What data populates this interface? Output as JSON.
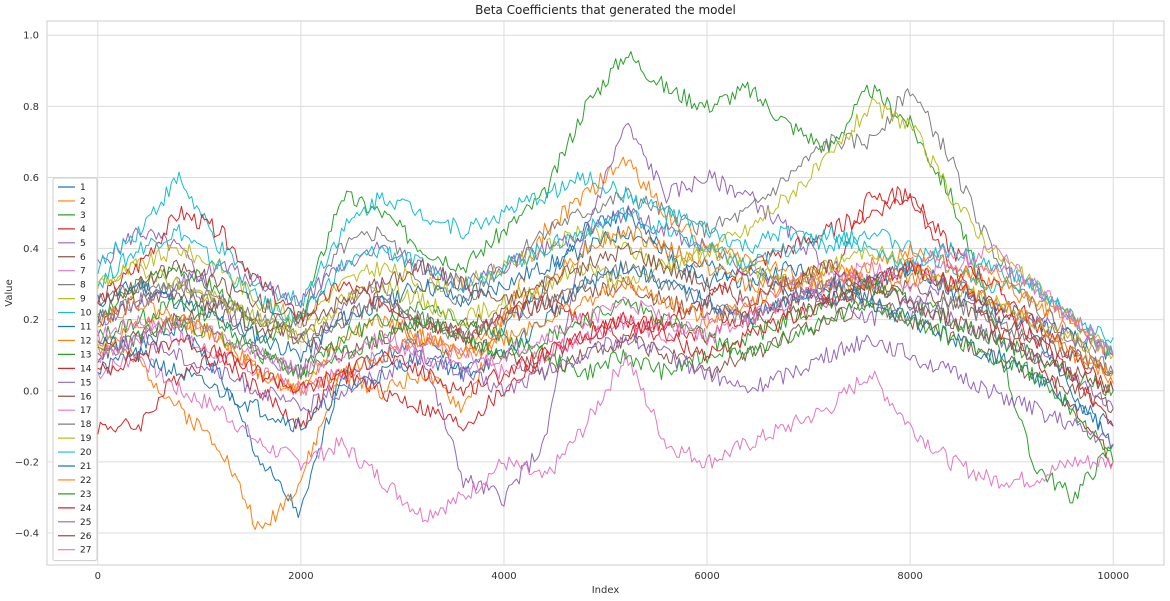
{
  "chart_data": {
    "type": "line",
    "title": "Beta Coefficients that generated the model",
    "xlabel": "Index",
    "ylabel": "Value",
    "xlim": [
      -500,
      10500
    ],
    "ylim": [
      -0.49,
      1.04
    ],
    "x_ticks": [
      0,
      2000,
      4000,
      6000,
      8000,
      10000
    ],
    "x_tick_labels": [
      "0",
      "2000",
      "4000",
      "6000",
      "8000",
      "10000"
    ],
    "y_ticks": [
      -0.4,
      -0.2,
      0.0,
      0.2,
      0.4,
      0.6,
      0.8,
      1.0
    ],
    "y_tick_labels": [
      "−0.4",
      "−0.2",
      "0.0",
      "0.2",
      "0.4",
      "0.6",
      "0.8",
      "1.0"
    ],
    "grid": true,
    "legend_position": "left",
    "x": [
      0,
      400,
      800,
      1200,
      1600,
      2000,
      2400,
      2800,
      3200,
      3600,
      4000,
      4400,
      4800,
      5200,
      5600,
      6000,
      6400,
      6800,
      7200,
      7600,
      8000,
      8400,
      8800,
      9200,
      9600,
      10000
    ],
    "series": [
      {
        "name": "1",
        "color": "#1f77b4",
        "values": [
          0.05,
          0.12,
          0.18,
          0.05,
          -0.2,
          -0.35,
          0.05,
          0.1,
          0.15,
          0.05,
          0.18,
          0.3,
          0.45,
          0.5,
          0.38,
          0.3,
          0.35,
          0.28,
          0.25,
          0.3,
          0.35,
          0.28,
          0.22,
          0.18,
          0.0,
          -0.15
        ]
      },
      {
        "name": "2",
        "color": "#ff7f0e",
        "values": [
          0.15,
          0.08,
          -0.05,
          -0.15,
          -0.4,
          -0.25,
          0.05,
          0.0,
          0.05,
          -0.05,
          0.2,
          0.45,
          0.55,
          0.65,
          0.5,
          0.4,
          0.38,
          0.33,
          0.3,
          0.28,
          0.32,
          0.3,
          0.35,
          0.25,
          0.15,
          0.02
        ]
      },
      {
        "name": "3",
        "color": "#2ca02c",
        "values": [
          0.2,
          0.3,
          0.35,
          0.28,
          0.15,
          0.2,
          0.55,
          0.5,
          0.4,
          0.35,
          0.45,
          0.55,
          0.8,
          0.95,
          0.85,
          0.8,
          0.85,
          0.75,
          0.68,
          0.85,
          0.75,
          0.55,
          0.2,
          -0.2,
          -0.3,
          -0.15
        ]
      },
      {
        "name": "4",
        "color": "#d62728",
        "values": [
          -0.1,
          -0.1,
          0.05,
          0.1,
          0.0,
          -0.1,
          0.05,
          0.0,
          -0.05,
          -0.1,
          0.0,
          0.1,
          0.15,
          0.2,
          0.18,
          0.15,
          0.22,
          0.25,
          0.28,
          0.55,
          0.55,
          0.35,
          0.18,
          0.1,
          -0.05,
          -0.2
        ]
      },
      {
        "name": "5",
        "color": "#9467bd",
        "values": [
          0.35,
          0.45,
          0.4,
          0.25,
          0.1,
          0.05,
          0.25,
          0.3,
          0.1,
          -0.25,
          -0.3,
          -0.15,
          0.45,
          0.75,
          0.55,
          0.6,
          0.55,
          0.45,
          0.35,
          0.3,
          0.25,
          0.2,
          0.15,
          0.1,
          0.05,
          -0.05
        ]
      },
      {
        "name": "6",
        "color": "#8c564b",
        "values": [
          0.2,
          0.25,
          0.28,
          0.22,
          0.18,
          0.15,
          0.2,
          0.25,
          0.2,
          0.18,
          0.22,
          0.25,
          0.28,
          0.3,
          0.25,
          0.22,
          0.2,
          0.22,
          0.25,
          0.28,
          0.3,
          0.25,
          0.2,
          0.15,
          0.1,
          0.05
        ]
      },
      {
        "name": "7",
        "color": "#e377c2",
        "values": [
          0.05,
          0.1,
          0.0,
          -0.05,
          -0.15,
          -0.2,
          -0.15,
          -0.25,
          -0.35,
          -0.3,
          -0.2,
          -0.25,
          -0.1,
          0.1,
          -0.15,
          -0.2,
          -0.15,
          -0.1,
          -0.05,
          0.05,
          -0.1,
          -0.2,
          -0.25,
          -0.25,
          -0.2,
          -0.2
        ]
      },
      {
        "name": "8",
        "color": "#7f7f7f",
        "values": [
          0.25,
          0.3,
          0.28,
          0.25,
          0.2,
          0.2,
          0.4,
          0.45,
          0.3,
          0.25,
          0.35,
          0.45,
          0.5,
          0.55,
          0.5,
          0.45,
          0.5,
          0.6,
          0.7,
          0.7,
          0.85,
          0.65,
          0.4,
          0.25,
          0.15,
          0.05
        ]
      },
      {
        "name": "9",
        "color": "#bcbd22",
        "values": [
          0.3,
          0.35,
          0.4,
          0.35,
          0.25,
          0.2,
          0.3,
          0.35,
          0.3,
          0.3,
          0.35,
          0.4,
          0.45,
          0.4,
          0.35,
          0.4,
          0.45,
          0.55,
          0.65,
          0.8,
          0.75,
          0.55,
          0.4,
          0.3,
          0.2,
          0.1
        ]
      },
      {
        "name": "10",
        "color": "#17becf",
        "values": [
          0.35,
          0.45,
          0.6,
          0.4,
          0.3,
          0.25,
          0.45,
          0.55,
          0.5,
          0.45,
          0.5,
          0.55,
          0.6,
          0.55,
          0.5,
          0.45,
          0.4,
          0.45,
          0.4,
          0.45,
          0.4,
          0.35,
          0.3,
          0.3,
          0.2,
          0.15
        ]
      },
      {
        "name": "11",
        "color": "#1f77b4",
        "values": [
          0.25,
          0.3,
          0.25,
          0.2,
          0.15,
          0.1,
          0.2,
          0.25,
          0.3,
          0.25,
          0.3,
          0.35,
          0.4,
          0.45,
          0.4,
          0.35,
          0.3,
          0.35,
          0.3,
          0.3,
          0.35,
          0.3,
          0.25,
          0.2,
          0.15,
          0.1
        ]
      },
      {
        "name": "12",
        "color": "#ff7f0e",
        "values": [
          0.12,
          0.18,
          0.2,
          0.15,
          0.05,
          0.0,
          0.15,
          0.2,
          0.15,
          0.1,
          0.2,
          0.3,
          0.4,
          0.45,
          0.4,
          0.35,
          0.3,
          0.3,
          0.3,
          0.35,
          0.4,
          0.35,
          0.3,
          0.25,
          0.2,
          0.1
        ]
      },
      {
        "name": "13",
        "color": "#2ca02c",
        "values": [
          0.15,
          0.2,
          0.25,
          0.2,
          0.1,
          0.05,
          0.15,
          0.2,
          0.25,
          0.2,
          0.15,
          0.1,
          0.05,
          0.1,
          0.05,
          0.1,
          0.15,
          0.2,
          0.25,
          0.3,
          0.25,
          0.2,
          0.15,
          0.1,
          0.05,
          0.0
        ]
      },
      {
        "name": "14",
        "color": "#d62728",
        "values": [
          0.25,
          0.35,
          0.5,
          0.45,
          0.3,
          0.2,
          0.3,
          0.25,
          0.2,
          0.15,
          0.2,
          0.25,
          0.2,
          0.15,
          0.2,
          0.25,
          0.35,
          0.4,
          0.45,
          0.5,
          0.55,
          0.4,
          0.3,
          0.2,
          0.1,
          0.0
        ]
      },
      {
        "name": "15",
        "color": "#9467bd",
        "values": [
          0.2,
          0.25,
          0.3,
          0.35,
          0.3,
          0.25,
          0.35,
          0.4,
          0.35,
          0.3,
          0.35,
          0.4,
          0.45,
          0.5,
          0.45,
          0.4,
          0.35,
          0.3,
          0.25,
          0.2,
          0.25,
          0.3,
          0.25,
          0.2,
          0.15,
          0.1
        ]
      },
      {
        "name": "16",
        "color": "#8c564b",
        "values": [
          0.1,
          0.15,
          0.2,
          0.25,
          0.2,
          0.15,
          0.1,
          0.15,
          0.2,
          0.15,
          0.1,
          0.05,
          0.1,
          0.15,
          0.1,
          0.05,
          0.1,
          0.15,
          0.2,
          0.25,
          0.2,
          0.15,
          0.1,
          0.05,
          0.0,
          -0.05
        ]
      },
      {
        "name": "17",
        "color": "#e377c2",
        "values": [
          0.15,
          0.2,
          0.15,
          0.1,
          0.05,
          0.0,
          0.05,
          0.1,
          0.15,
          0.1,
          0.05,
          0.1,
          0.15,
          0.2,
          0.15,
          0.2,
          0.25,
          0.3,
          0.35,
          0.3,
          0.35,
          0.4,
          0.35,
          0.3,
          0.2,
          0.1
        ]
      },
      {
        "name": "18",
        "color": "#7f7f7f",
        "values": [
          0.2,
          0.25,
          0.3,
          0.25,
          0.2,
          0.15,
          0.2,
          0.25,
          0.2,
          0.15,
          0.2,
          0.25,
          0.3,
          0.35,
          0.3,
          0.25,
          0.2,
          0.25,
          0.3,
          0.25,
          0.2,
          0.25,
          0.2,
          0.15,
          0.1,
          0.05
        ]
      },
      {
        "name": "19",
        "color": "#bcbd22",
        "values": [
          0.3,
          0.35,
          0.3,
          0.25,
          0.2,
          0.15,
          0.25,
          0.3,
          0.25,
          0.2,
          0.25,
          0.3,
          0.35,
          0.3,
          0.35,
          0.4,
          0.35,
          0.3,
          0.35,
          0.4,
          0.35,
          0.3,
          0.25,
          0.2,
          0.15,
          0.1
        ]
      },
      {
        "name": "20",
        "color": "#17becf",
        "values": [
          0.3,
          0.4,
          0.45,
          0.35,
          0.25,
          0.2,
          0.35,
          0.4,
          0.35,
          0.3,
          0.35,
          0.4,
          0.45,
          0.5,
          0.45,
          0.4,
          0.35,
          0.4,
          0.45,
          0.4,
          0.35,
          0.4,
          0.35,
          0.3,
          0.2,
          0.1
        ]
      },
      {
        "name": "21",
        "color": "#1f77b4",
        "values": [
          0.15,
          0.1,
          0.05,
          0.0,
          -0.05,
          -0.1,
          0.0,
          0.05,
          0.1,
          0.05,
          0.1,
          0.2,
          0.3,
          0.35,
          0.3,
          0.25,
          0.2,
          0.25,
          0.3,
          0.25,
          0.2,
          0.15,
          0.1,
          0.05,
          -0.05,
          -0.1
        ]
      },
      {
        "name": "22",
        "color": "#ff7f0e",
        "values": [
          0.2,
          0.25,
          0.2,
          0.15,
          0.05,
          0.0,
          0.05,
          0.1,
          0.15,
          0.1,
          0.15,
          0.2,
          0.25,
          0.3,
          0.25,
          0.2,
          0.25,
          0.3,
          0.35,
          0.3,
          0.35,
          0.3,
          0.25,
          0.2,
          0.1,
          0.05
        ]
      },
      {
        "name": "23",
        "color": "#2ca02c",
        "values": [
          0.1,
          0.15,
          0.2,
          0.15,
          0.1,
          0.05,
          0.1,
          0.15,
          0.2,
          0.15,
          0.1,
          0.15,
          0.2,
          0.25,
          0.2,
          0.15,
          0.1,
          0.15,
          0.2,
          0.25,
          0.2,
          0.15,
          0.1,
          0.05,
          -0.05,
          -0.2
        ]
      },
      {
        "name": "24",
        "color": "#d62728",
        "values": [
          0.05,
          0.1,
          0.15,
          0.1,
          0.05,
          0.0,
          0.05,
          0.1,
          0.05,
          0.0,
          0.05,
          0.1,
          0.15,
          0.2,
          0.15,
          0.1,
          0.15,
          0.2,
          0.25,
          0.3,
          0.35,
          0.3,
          0.25,
          0.15,
          0.05,
          -0.1
        ]
      },
      {
        "name": "25",
        "color": "#9467bd",
        "values": [
          0.1,
          0.15,
          0.1,
          0.05,
          0.0,
          -0.05,
          0.0,
          0.05,
          0.1,
          0.05,
          0.0,
          0.05,
          0.1,
          0.15,
          0.1,
          0.05,
          0.0,
          0.05,
          0.1,
          0.15,
          0.1,
          0.05,
          0.0,
          -0.05,
          -0.1,
          -0.15
        ]
      },
      {
        "name": "26",
        "color": "#8c564b",
        "values": [
          0.25,
          0.3,
          0.35,
          0.3,
          0.25,
          0.2,
          0.25,
          0.3,
          0.35,
          0.3,
          0.25,
          0.3,
          0.35,
          0.4,
          0.35,
          0.3,
          0.25,
          0.3,
          0.35,
          0.3,
          0.25,
          0.2,
          0.15,
          0.1,
          0.05,
          0.0
        ]
      },
      {
        "name": "27",
        "color": "#e377c2",
        "values": [
          0.1,
          0.15,
          0.2,
          0.15,
          0.1,
          0.05,
          0.1,
          0.15,
          0.1,
          0.05,
          0.1,
          0.15,
          0.2,
          0.25,
          0.2,
          0.15,
          0.2,
          0.25,
          0.3,
          0.35,
          0.3,
          0.35,
          0.4,
          0.3,
          0.2,
          0.1
        ]
      }
    ]
  }
}
